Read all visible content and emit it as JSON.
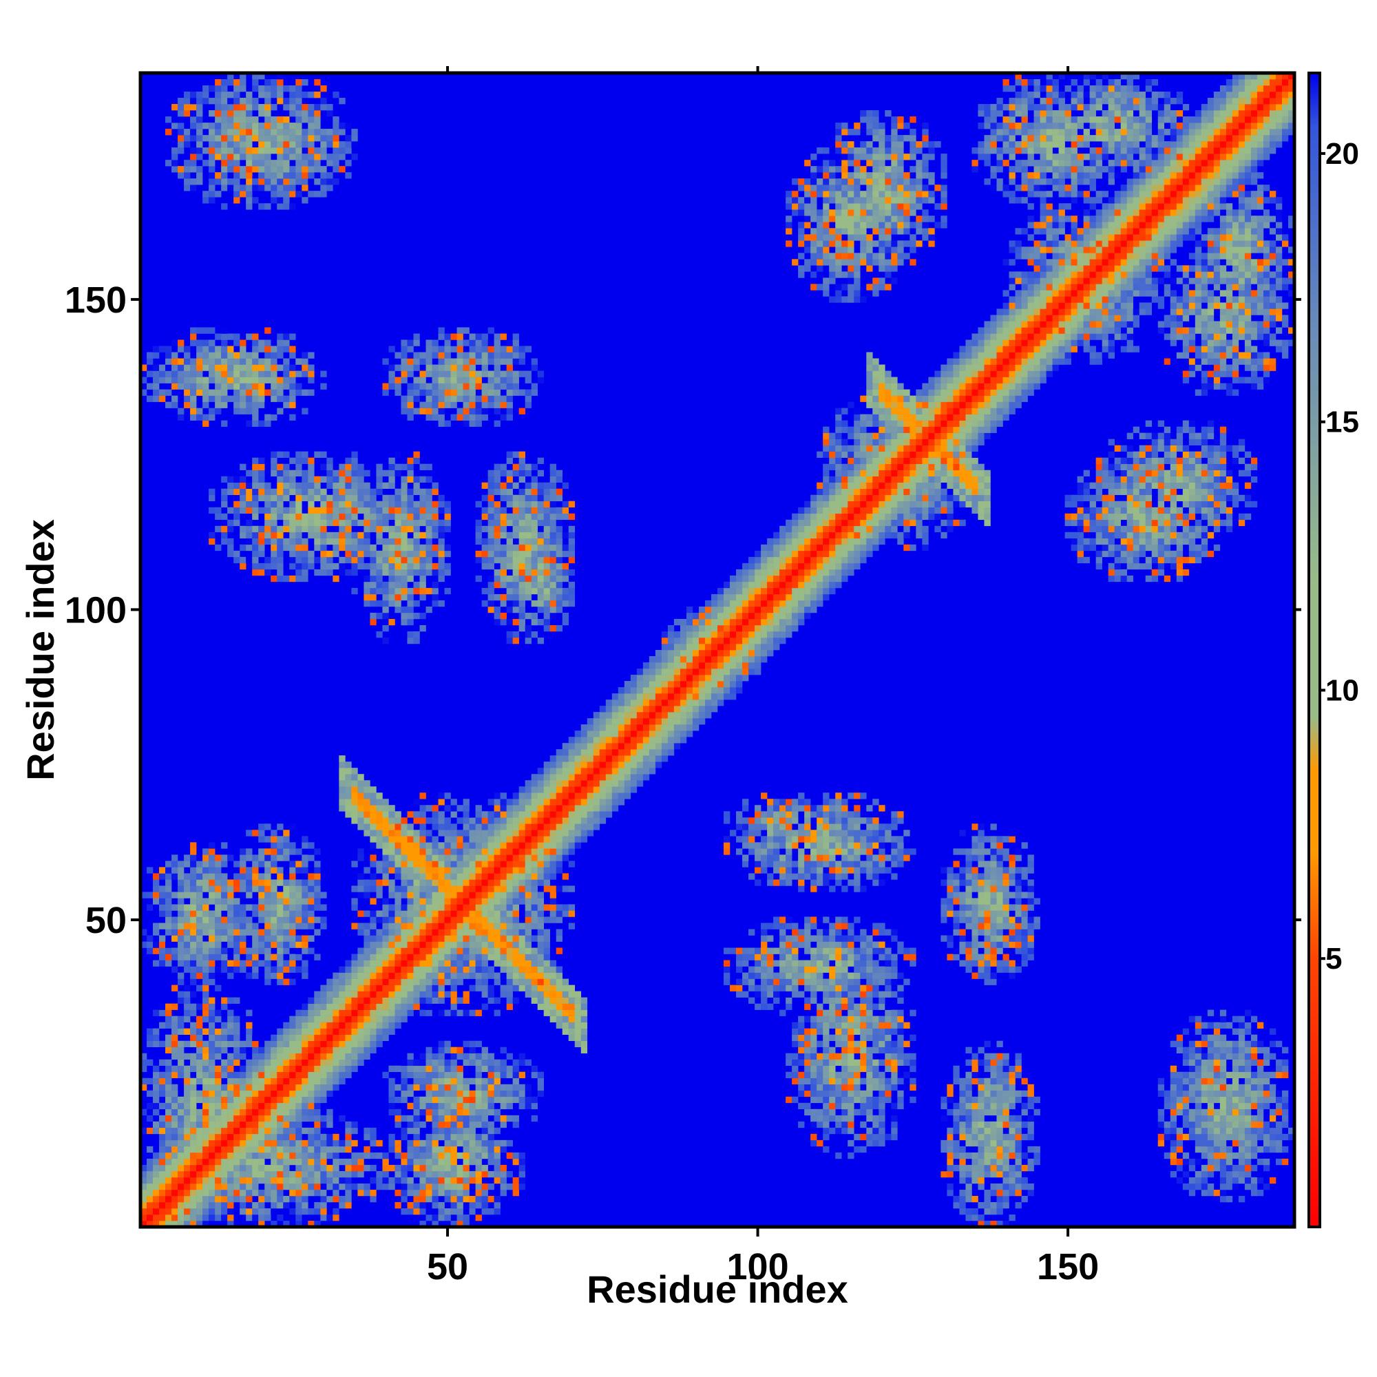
{
  "chart_data": {
    "type": "heatmap",
    "title": "",
    "xlabel": "Residue index",
    "ylabel": "Residue index",
    "xlim": [
      1,
      186
    ],
    "ylim": [
      1,
      186
    ],
    "x_ticks": [
      50,
      100,
      150
    ],
    "y_ticks": [
      50,
      100,
      150
    ],
    "x_tick_labels": [
      "50",
      "100",
      "150"
    ],
    "y_tick_labels": [
      "50",
      "100",
      "150"
    ],
    "colorbar": {
      "range": [
        0,
        21.5
      ],
      "ticks": [
        5,
        10,
        15,
        20
      ],
      "tick_labels": [
        "5",
        "10",
        "15",
        "20"
      ],
      "stops": [
        {
          "value": 0,
          "color": "#ff0000"
        },
        {
          "value": 5,
          "color": "#ff4400"
        },
        {
          "value": 7,
          "color": "#ff9900"
        },
        {
          "value": 8.5,
          "color": "#ff9900"
        },
        {
          "value": 9.5,
          "color": "#99bb88"
        },
        {
          "value": 12,
          "color": "#99bb88"
        },
        {
          "value": 17,
          "color": "#6688bb"
        },
        {
          "value": 20.5,
          "color": "#3355dd"
        },
        {
          "value": 21.5,
          "color": "#0000ee"
        }
      ]
    },
    "background_color": "#0000ee",
    "diagonal_color": "#ff0000",
    "contact_blocks": [
      {
        "x": [
          1,
          20
        ],
        "y": [
          1,
          40
        ]
      },
      {
        "x": [
          1,
          40
        ],
        "y": [
          1,
          20
        ]
      },
      {
        "x": [
          40,
          62
        ],
        "y": [
          1,
          20
        ]
      },
      {
        "x": [
          1,
          20
        ],
        "y": [
          40,
          62
        ]
      },
      {
        "x": [
          15,
          30
        ],
        "y": [
          40,
          65
        ]
      },
      {
        "x": [
          40,
          65
        ],
        "y": [
          15,
          30
        ]
      },
      {
        "x": [
          35,
          70
        ],
        "y": [
          35,
          70
        ]
      },
      {
        "x": [
          12,
          45
        ],
        "y": [
          105,
          125
        ]
      },
      {
        "x": [
          105,
          125
        ],
        "y": [
          12,
          45
        ]
      },
      {
        "x": [
          1,
          30
        ],
        "y": [
          130,
          145
        ]
      },
      {
        "x": [
          130,
          145
        ],
        "y": [
          1,
          30
        ]
      },
      {
        "x": [
          5,
          35
        ],
        "y": [
          165,
          186
        ]
      },
      {
        "x": [
          165,
          186
        ],
        "y": [
          5,
          35
        ]
      },
      {
        "x": [
          35,
          50
        ],
        "y": [
          95,
          125
        ]
      },
      {
        "x": [
          95,
          125
        ],
        "y": [
          35,
          50
        ]
      },
      {
        "x": [
          40,
          65
        ],
        "y": [
          130,
          145
        ]
      },
      {
        "x": [
          130,
          145
        ],
        "y": [
          40,
          65
        ]
      },
      {
        "x": [
          55,
          70
        ],
        "y": [
          95,
          125
        ]
      },
      {
        "x": [
          95,
          125
        ],
        "y": [
          55,
          70
        ]
      },
      {
        "x": [
          85,
          100
        ],
        "y": [
          85,
          100
        ]
      },
      {
        "x": [
          110,
          135
        ],
        "y": [
          110,
          135
        ]
      },
      {
        "x": [
          110,
          130
        ],
        "y": [
          155,
          180
        ]
      },
      {
        "x": [
          155,
          180
        ],
        "y": [
          110,
          130
        ]
      },
      {
        "x": [
          140,
          165
        ],
        "y": [
          140,
          165
        ]
      },
      {
        "x": [
          145,
          170
        ],
        "y": [
          170,
          186
        ]
      },
      {
        "x": [
          170,
          186
        ],
        "y": [
          145,
          170
        ]
      },
      {
        "x": [
          150,
          175
        ],
        "y": [
          105,
          125
        ]
      },
      {
        "x": [
          105,
          125
        ],
        "y": [
          150,
          175
        ]
      },
      {
        "x": [
          165,
          186
        ],
        "y": [
          135,
          160
        ]
      },
      {
        "x": [
          135,
          160
        ],
        "y": [
          165,
          186
        ]
      },
      {
        "x": [
          95,
          115
        ],
        "y": [
          60,
          70
        ]
      },
      {
        "x": [
          60,
          70
        ],
        "y": [
          95,
          115
        ]
      }
    ],
    "antiparallel_strands": [
      {
        "x": [
          35,
          70
        ],
        "y": [
          70,
          35
        ]
      },
      {
        "x": [
          120,
          135
        ],
        "y": [
          135,
          120
        ]
      }
    ],
    "legend": "none",
    "grid": false
  }
}
